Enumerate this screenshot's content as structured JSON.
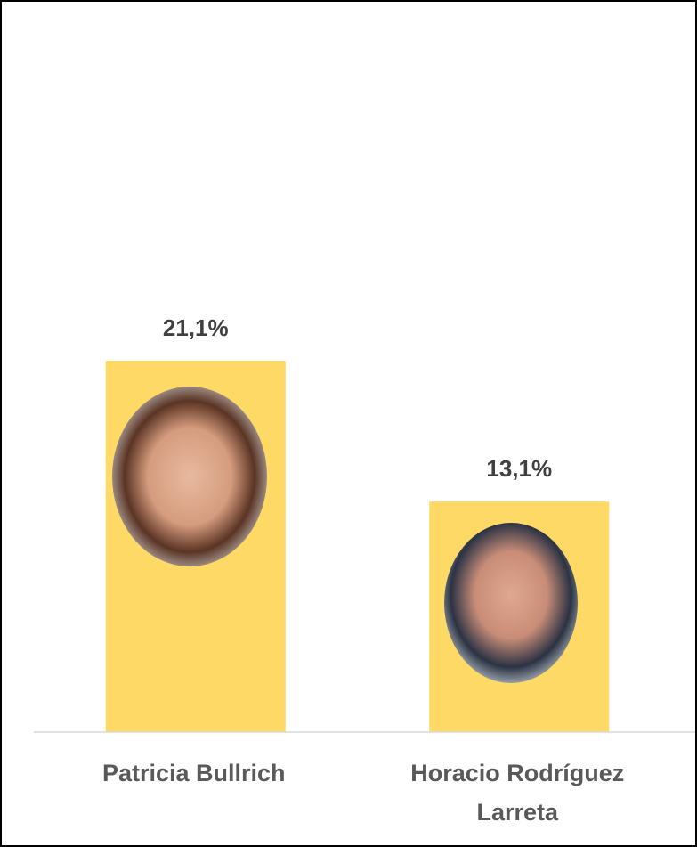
{
  "chart_data": {
    "type": "bar",
    "categories": [
      "Patricia Bullrich",
      "Horacio Rodríguez Larreta"
    ],
    "values": [
      21.1,
      13.1
    ],
    "value_labels": [
      "21,1%",
      "13,1%"
    ],
    "color": "#ffd966",
    "ylim": [
      0,
      25
    ]
  }
}
